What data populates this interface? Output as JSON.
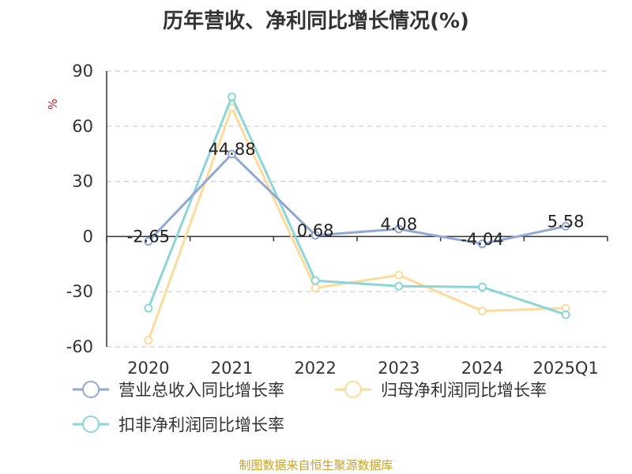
{
  "chart_data": {
    "type": "line",
    "title": "历年营收、净利同比增长情况(%)",
    "ylabel": "%",
    "categories": [
      "2020",
      "2021",
      "2022",
      "2023",
      "2024",
      "2025Q1"
    ],
    "ylim": [
      -60,
      90
    ],
    "yticks": [
      "90",
      "60",
      "30",
      "0",
      "-30",
      "-60"
    ],
    "grid": true,
    "legend_position": "bottom",
    "series": [
      {
        "name": "营业总收入同比增长率",
        "color": "#91a7d6",
        "values": [
          -2.65,
          44.88,
          0.68,
          4.08,
          -4.04,
          5.58
        ],
        "labels": [
          "-2.65",
          "44.88",
          "0.68",
          "4.08",
          "-4.04",
          "5.58"
        ]
      },
      {
        "name": "归母净利润同比增长率",
        "color": "#fcdb9b",
        "values": [
          -56.5,
          70.0,
          -28.0,
          -21.0,
          -40.5,
          -39.0
        ]
      },
      {
        "name": "扣非净利润同比增长率",
        "color": "#8dd6d8",
        "values": [
          -39.0,
          76.0,
          -24.0,
          -27.0,
          -27.5,
          -42.5
        ]
      }
    ]
  },
  "source": "制图数据来自恒生聚源数据库"
}
